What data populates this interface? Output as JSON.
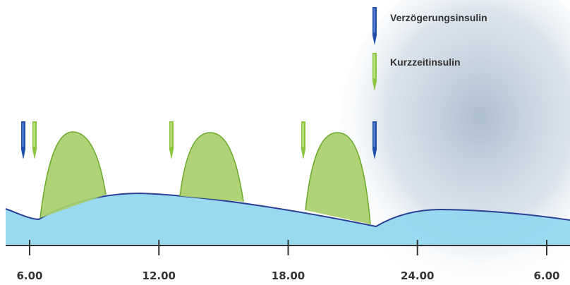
{
  "legend": [
    {
      "label": "Verzögerungsinsulin"
    },
    {
      "label": "Kurzzeitinsulin"
    }
  ],
  "axis": {
    "ticks": [
      "6.00",
      "12.00",
      "18.00",
      "24.00",
      "6.00"
    ]
  }
}
